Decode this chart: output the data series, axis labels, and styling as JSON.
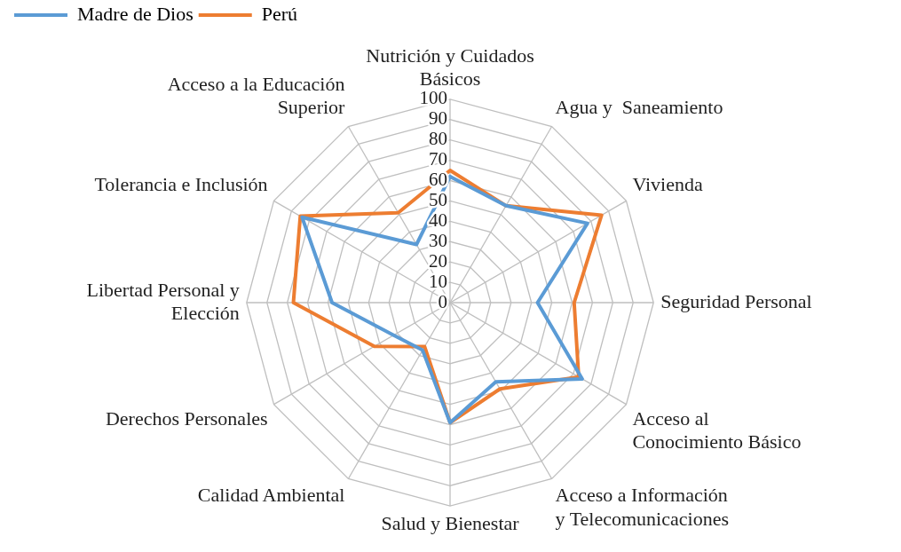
{
  "chart_data": {
    "type": "radar",
    "categories": [
      "Nutrición y Cuidados\nBásicos",
      "Agua y  Saneamiento",
      "Vivienda",
      "Seguridad Personal",
      "Acceso al\nConocimiento Básico",
      "Acceso a Información\ny Telecomunicaciones",
      "Salud y Bienestar",
      "Calidad Ambiental",
      "Derechos Personales",
      "Libertad Personal y\nElección",
      "Tolerancia e Inclusión",
      "Acceso a la Educación\nSuperior"
    ],
    "series": [
      {
        "name": "Madre de Dios",
        "color": "#5b9bd5",
        "values": [
          62,
          55,
          78,
          43,
          75,
          45,
          59,
          27,
          32,
          58,
          84,
          33
        ]
      },
      {
        "name": "Perú",
        "color": "#ed7d31",
        "values": [
          65,
          55,
          86,
          61,
          73,
          49,
          59,
          25,
          43,
          77,
          85,
          51
        ]
      }
    ],
    "ylim": [
      0,
      100
    ],
    "yticks": [
      0,
      10,
      20,
      30,
      40,
      50,
      60,
      70,
      80,
      90,
      100
    ],
    "grid": true,
    "legend": "top left",
    "marker": "none"
  }
}
